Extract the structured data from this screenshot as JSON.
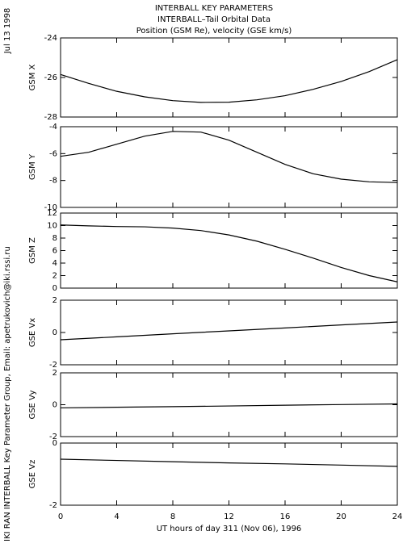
{
  "header": {
    "lines": [
      "INTERBALL KEY PARAMETERS",
      "INTERBALL–Tail Orbital Data",
      "Position (GSM Re), velocity (GSE km/s)"
    ],
    "date": "Jul 13 1998",
    "credit": "IKI RAN INTERBALL Key Parameter Group, Email: apetrukovich@iki.rssi.ru"
  },
  "chart_data": [
    {
      "type": "line",
      "ylabel": "GSM X",
      "color": "#000000",
      "xlim": [
        0,
        24
      ],
      "xticks": [
        0,
        4,
        8,
        12,
        16,
        20,
        24
      ],
      "ylim": [
        -28,
        -24
      ],
      "yticks": [
        -28,
        -26,
        -24
      ],
      "x": [
        0,
        2,
        4,
        6,
        8,
        10,
        12,
        14,
        16,
        18,
        20,
        22,
        24
      ],
      "values": [
        -25.85,
        -26.3,
        -26.7,
        -26.98,
        -27.17,
        -27.26,
        -27.25,
        -27.13,
        -26.92,
        -26.6,
        -26.2,
        -25.7,
        -25.1
      ]
    },
    {
      "type": "line",
      "ylabel": "GSM Y",
      "color": "#000000",
      "xlim": [
        0,
        24
      ],
      "xticks": [
        0,
        4,
        8,
        12,
        16,
        20,
        24
      ],
      "ylim": [
        -10,
        -4
      ],
      "yticks": [
        -10,
        -8,
        -6,
        -4
      ],
      "x": [
        0,
        2,
        4,
        6,
        8,
        10,
        12,
        14,
        16,
        18,
        20,
        22,
        24
      ],
      "values": [
        -6.2,
        -5.9,
        -5.3,
        -4.7,
        -4.35,
        -4.4,
        -5.0,
        -5.9,
        -6.8,
        -7.5,
        -7.9,
        -8.1,
        -8.15
      ]
    },
    {
      "type": "line",
      "ylabel": "GSM Z",
      "color": "#000000",
      "xlim": [
        0,
        24
      ],
      "xticks": [
        0,
        4,
        8,
        12,
        16,
        20,
        24
      ],
      "ylim": [
        0,
        12
      ],
      "yticks": [
        0,
        2,
        4,
        6,
        8,
        10,
        12
      ],
      "x": [
        0,
        2,
        4,
        6,
        8,
        10,
        12,
        14,
        16,
        18,
        20,
        22,
        24
      ],
      "values": [
        10.1,
        9.95,
        9.85,
        9.8,
        9.6,
        9.2,
        8.5,
        7.5,
        6.2,
        4.8,
        3.3,
        2.0,
        1.0
      ]
    },
    {
      "type": "line",
      "ylabel": "GSE Vx",
      "color": "#000000",
      "xlim": [
        0,
        24
      ],
      "xticks": [
        0,
        4,
        8,
        12,
        16,
        20,
        24
      ],
      "ylim": [
        -2,
        2
      ],
      "yticks": [
        -2,
        0,
        2
      ],
      "x": [
        0,
        4,
        8,
        12,
        16,
        20,
        24
      ],
      "values": [
        -0.45,
        -0.27,
        -0.08,
        0.1,
        0.28,
        0.47,
        0.65
      ]
    },
    {
      "type": "line",
      "ylabel": "GSE Vy",
      "color": "#000000",
      "xlim": [
        0,
        24
      ],
      "xticks": [
        0,
        4,
        8,
        12,
        16,
        20,
        24
      ],
      "ylim": [
        -2,
        2
      ],
      "yticks": [
        -2,
        0,
        2
      ],
      "x": [
        0,
        4,
        8,
        12,
        16,
        20,
        24
      ],
      "values": [
        -0.2,
        -0.16,
        -0.12,
        -0.08,
        -0.03,
        0.01,
        0.05
      ]
    },
    {
      "type": "line",
      "ylabel": "GSE Vz",
      "color": "#000000",
      "xlim": [
        0,
        24
      ],
      "xticks": [
        0,
        4,
        8,
        12,
        16,
        20,
        24
      ],
      "ylim": [
        -2,
        0
      ],
      "yticks": [
        -2,
        0
      ],
      "x": [
        0,
        4,
        8,
        12,
        16,
        20,
        24
      ],
      "values": [
        -0.52,
        -0.56,
        -0.6,
        -0.64,
        -0.67,
        -0.71,
        -0.75
      ],
      "xlabel": "UT hours of day 311 (Nov 06), 1996"
    }
  ]
}
